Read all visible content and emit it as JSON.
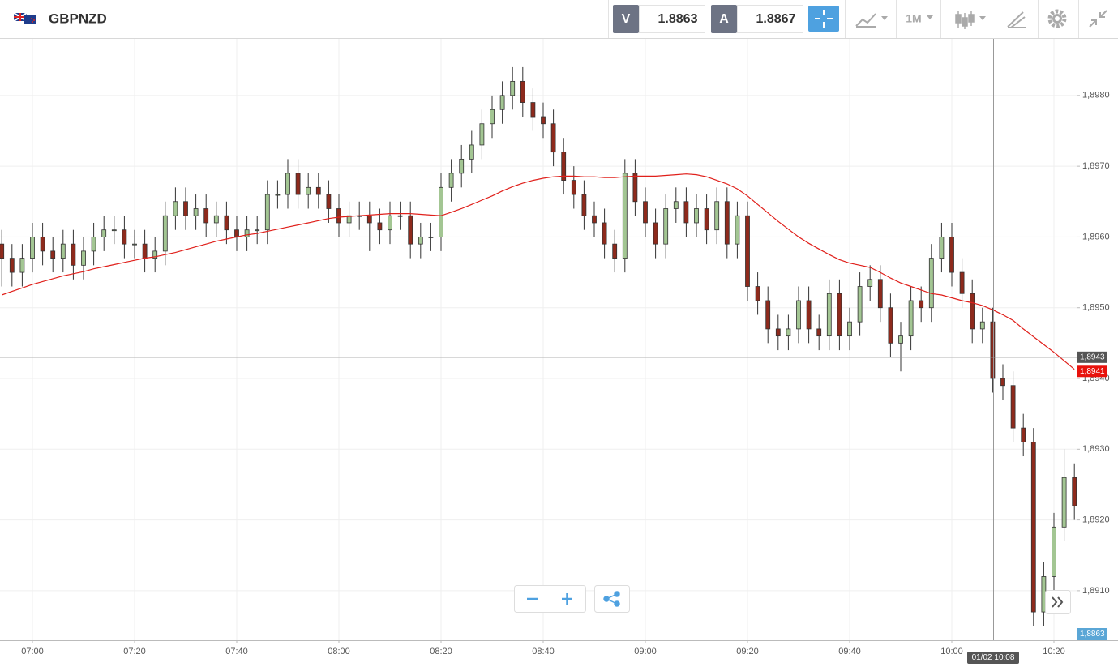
{
  "header": {
    "symbol": "GBPNZD",
    "sell_label": "V",
    "sell_price": "1.8863",
    "buy_label": "A",
    "buy_price": "1.8867",
    "timeframe": "1M"
  },
  "chart_data": {
    "type": "candlestick",
    "xticks": [
      "07:00",
      "07:20",
      "07:40",
      "08:00",
      "08:20",
      "08:40",
      "09:00",
      "09:20",
      "09:40",
      "10:00",
      "10:20"
    ],
    "ylim": [
      1.8903,
      1.8988
    ],
    "yticks": [
      {
        "value": 1.891,
        "label": "1,8910"
      },
      {
        "value": 1.892,
        "label": "1,8920"
      },
      {
        "value": 1.893,
        "label": "1,8930"
      },
      {
        "value": 1.894,
        "label": "1,8940"
      },
      {
        "value": 1.895,
        "label": "1,8950"
      },
      {
        "value": 1.896,
        "label": "1,8960"
      },
      {
        "value": 1.897,
        "label": "1,8970"
      },
      {
        "value": 1.898,
        "label": "1,8980"
      }
    ],
    "grid": true,
    "up_color": "#a3c693",
    "down_color": "#8e2a1c",
    "ma_color": "#e0201b",
    "open": [
      1.8959,
      1.8957,
      1.8955,
      1.8957,
      1.896,
      1.8958,
      1.8957,
      1.8959,
      1.8956,
      1.8958,
      1.896,
      1.8961,
      1.8961,
      1.8959,
      1.8959,
      1.8957,
      1.8958,
      1.8963,
      1.8965,
      1.8963,
      1.8964,
      1.8962,
      1.8963,
      1.8961,
      1.896,
      1.8961,
      1.8961,
      1.8966,
      1.8966,
      1.8969,
      1.8966,
      1.8967,
      1.8966,
      1.8964,
      1.8962,
      1.8963,
      1.8963,
      1.8962,
      1.8961,
      1.8963,
      1.8963,
      1.8959,
      1.896,
      1.896,
      1.8967,
      1.8969,
      1.8971,
      1.8973,
      1.8976,
      1.8978,
      1.898,
      1.8982,
      1.8979,
      1.8977,
      1.8976,
      1.8972,
      1.8968,
      1.8966,
      1.8963,
      1.8962,
      1.8959,
      1.8957,
      1.8969,
      1.8965,
      1.8962,
      1.8959,
      1.8964,
      1.8965,
      1.8962,
      1.8964,
      1.8961,
      1.8965,
      1.8959,
      1.8963,
      1.8953,
      1.8951,
      1.8947,
      1.8946,
      1.8947,
      1.8951,
      1.8947,
      1.8946,
      1.8952,
      1.8946,
      1.8948,
      1.8953,
      1.8954,
      1.895,
      1.8945,
      1.8946,
      1.8951,
      1.895,
      1.8957,
      1.896,
      1.8955,
      1.8952,
      1.8947,
      1.8948,
      1.894,
      1.8939,
      1.8933,
      1.8931,
      1.8907,
      1.8912,
      1.8919,
      1.8926
    ],
    "high": [
      1.8961,
      1.8959,
      1.8959,
      1.8962,
      1.8962,
      1.896,
      1.8961,
      1.8961,
      1.896,
      1.8962,
      1.8963,
      1.8963,
      1.8963,
      1.8961,
      1.8961,
      1.896,
      1.8965,
      1.8967,
      1.8967,
      1.8966,
      1.8966,
      1.8965,
      1.8965,
      1.8963,
      1.8963,
      1.8963,
      1.8968,
      1.8968,
      1.8971,
      1.8971,
      1.8969,
      1.8969,
      1.8968,
      1.8966,
      1.8965,
      1.8965,
      1.8965,
      1.8964,
      1.8965,
      1.8965,
      1.8965,
      1.8962,
      1.8962,
      1.8969,
      1.8971,
      1.8973,
      1.8975,
      1.8978,
      1.898,
      1.8982,
      1.8984,
      1.8984,
      1.8981,
      1.8979,
      1.8978,
      1.8974,
      1.897,
      1.8968,
      1.8965,
      1.8964,
      1.8961,
      1.8971,
      1.8971,
      1.8967,
      1.8964,
      1.8966,
      1.8967,
      1.8967,
      1.8966,
      1.8966,
      1.8967,
      1.8967,
      1.8965,
      1.8965,
      1.8955,
      1.8953,
      1.8949,
      1.8949,
      1.8953,
      1.8953,
      1.8949,
      1.8954,
      1.8954,
      1.895,
      1.8955,
      1.8956,
      1.8956,
      1.8952,
      1.8948,
      1.8953,
      1.8953,
      1.8959,
      1.8962,
      1.8962,
      1.8957,
      1.8954,
      1.895,
      1.895,
      1.8942,
      1.8941,
      1.8935,
      1.8933,
      1.8914,
      1.8921,
      1.893,
      1.8928
    ],
    "low": [
      1.8953,
      1.8953,
      1.8953,
      1.8955,
      1.8956,
      1.8955,
      1.8955,
      1.8954,
      1.8954,
      1.8956,
      1.8958,
      1.8959,
      1.8957,
      1.8957,
      1.8955,
      1.8955,
      1.8956,
      1.8961,
      1.8961,
      1.8961,
      1.896,
      1.896,
      1.8959,
      1.8958,
      1.8958,
      1.8959,
      1.8959,
      1.8964,
      1.8964,
      1.8964,
      1.8964,
      1.8964,
      1.8962,
      1.896,
      1.896,
      1.8961,
      1.8958,
      1.8959,
      1.8959,
      1.8961,
      1.8957,
      1.8957,
      1.8958,
      1.8958,
      1.8965,
      1.8967,
      1.8969,
      1.8971,
      1.8974,
      1.8976,
      1.8978,
      1.8977,
      1.8975,
      1.8974,
      1.897,
      1.8966,
      1.8964,
      1.8961,
      1.896,
      1.8957,
      1.8955,
      1.8955,
      1.8963,
      1.896,
      1.8957,
      1.8957,
      1.8962,
      1.896,
      1.896,
      1.8959,
      1.8959,
      1.8957,
      1.8957,
      1.8951,
      1.8949,
      1.8945,
      1.8944,
      1.8944,
      1.8945,
      1.8945,
      1.8944,
      1.8944,
      1.8944,
      1.8944,
      1.8946,
      1.8951,
      1.8948,
      1.8943,
      1.8941,
      1.8944,
      1.8948,
      1.8948,
      1.8955,
      1.8953,
      1.895,
      1.8945,
      1.8945,
      1.8938,
      1.8937,
      1.8931,
      1.8929,
      1.8905,
      1.8905,
      1.891,
      1.8917,
      1.892
    ],
    "close": [
      1.8957,
      1.8955,
      1.8957,
      1.896,
      1.8958,
      1.8957,
      1.8959,
      1.8956,
      1.8958,
      1.896,
      1.8961,
      1.8961,
      1.8959,
      1.8959,
      1.8957,
      1.8958,
      1.8963,
      1.8965,
      1.8963,
      1.8964,
      1.8962,
      1.8963,
      1.8961,
      1.896,
      1.8961,
      1.8961,
      1.8966,
      1.8966,
      1.8969,
      1.8966,
      1.8967,
      1.8966,
      1.8964,
      1.8962,
      1.8963,
      1.8963,
      1.8962,
      1.8961,
      1.8963,
      1.8963,
      1.8959,
      1.896,
      1.896,
      1.8967,
      1.8969,
      1.8971,
      1.8973,
      1.8976,
      1.8978,
      1.898,
      1.8982,
      1.8979,
      1.8977,
      1.8976,
      1.8972,
      1.8968,
      1.8966,
      1.8963,
      1.8962,
      1.8959,
      1.8957,
      1.8969,
      1.8965,
      1.8962,
      1.8959,
      1.8964,
      1.8965,
      1.8962,
      1.8964,
      1.8961,
      1.8965,
      1.8959,
      1.8963,
      1.8953,
      1.8951,
      1.8947,
      1.8946,
      1.8947,
      1.8951,
      1.8947,
      1.8946,
      1.8952,
      1.8946,
      1.8948,
      1.8953,
      1.8954,
      1.895,
      1.8945,
      1.8946,
      1.8951,
      1.895,
      1.8957,
      1.896,
      1.8955,
      1.8952,
      1.8947,
      1.8948,
      1.894,
      1.8939,
      1.8933,
      1.8931,
      1.8907,
      1.8912,
      1.8919,
      1.8926,
      1.8922
    ],
    "ma": [
      1.89518,
      1.89523,
      1.89528,
      1.89533,
      1.89537,
      1.89541,
      1.89545,
      1.89548,
      1.89551,
      1.89555,
      1.89558,
      1.89561,
      1.89564,
      1.89567,
      1.8957,
      1.89572,
      1.89575,
      1.89578,
      1.89582,
      1.89586,
      1.8959,
      1.89594,
      1.89597,
      1.896,
      1.89603,
      1.89605,
      1.89608,
      1.89611,
      1.89614,
      1.89617,
      1.8962,
      1.89623,
      1.89626,
      1.89628,
      1.89629,
      1.8963,
      1.89631,
      1.89632,
      1.89633,
      1.89633,
      1.89633,
      1.89632,
      1.89631,
      1.8963,
      1.89635,
      1.8964,
      1.89646,
      1.89652,
      1.89658,
      1.89665,
      1.89671,
      1.89676,
      1.8968,
      1.89683,
      1.89685,
      1.89686,
      1.89686,
      1.89685,
      1.89685,
      1.89684,
      1.89684,
      1.89685,
      1.89686,
      1.89686,
      1.89686,
      1.89687,
      1.89688,
      1.89689,
      1.89688,
      1.89685,
      1.8968,
      1.89675,
      1.89668,
      1.89658,
      1.89646,
      1.89634,
      1.89622,
      1.89611,
      1.896,
      1.89591,
      1.89583,
      1.89575,
      1.89568,
      1.89563,
      1.8956,
      1.89557,
      1.8955,
      1.89542,
      1.89535,
      1.8953,
      1.89525,
      1.8952,
      1.89518,
      1.89514,
      1.8951,
      1.89507,
      1.89503,
      1.89497,
      1.8949,
      1.89482,
      1.8947,
      1.89459,
      1.89448,
      1.89437,
      1.89425,
      1.89413
    ],
    "crosshair_price": {
      "value": 1.8943,
      "label": "1,8943"
    },
    "ma_last": {
      "value": 1.8941,
      "label": "1,8941"
    },
    "bid_tag": "1,8863",
    "crosshair_time": "01/02 10:08"
  }
}
